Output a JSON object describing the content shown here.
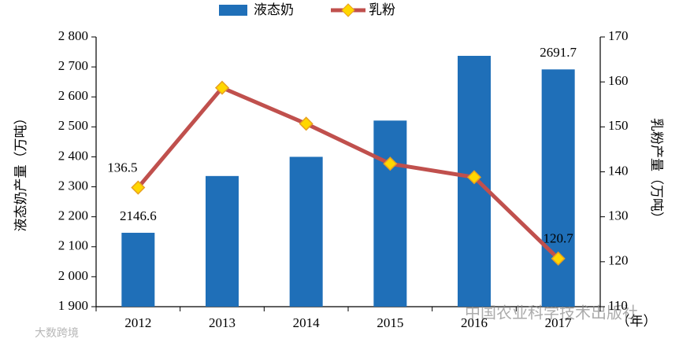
{
  "chart_data": {
    "type": "bar-line",
    "categories": [
      "2012",
      "2013",
      "2014",
      "2015",
      "2016",
      "2017"
    ],
    "x_unit": "（年）",
    "series": [
      {
        "name": "液态奶",
        "type": "bar",
        "color": "#1f6fb8",
        "values": [
          2146.6,
          2336,
          2400,
          2521,
          2737,
          2691.7
        ],
        "value_labels": [
          "2146.6",
          null,
          null,
          null,
          null,
          "2691.7"
        ]
      },
      {
        "name": "乳粉",
        "type": "line",
        "axis": "y2",
        "color": "#c0504d",
        "marker_color": "#ffd700",
        "values": [
          136.5,
          158.7,
          150.7,
          141.8,
          138.8,
          120.7
        ],
        "value_labels": [
          "136.5",
          null,
          null,
          null,
          null,
          "120.7"
        ]
      }
    ],
    "ylabel": "液态奶产量（万吨）",
    "y2label": "乳粉产量（万吨）",
    "ylim": [
      1900,
      2800
    ],
    "yticks": [
      {
        "value": 1900,
        "label": "1 900"
      },
      {
        "value": 2000,
        "label": "2 000"
      },
      {
        "value": 2100,
        "label": "2 100"
      },
      {
        "value": 2200,
        "label": "2 200"
      },
      {
        "value": 2300,
        "label": "2 300"
      },
      {
        "value": 2400,
        "label": "2 400"
      },
      {
        "value": 2500,
        "label": "2 500"
      },
      {
        "value": 2600,
        "label": "2 600"
      },
      {
        "value": 2700,
        "label": "2 700"
      },
      {
        "value": 2800,
        "label": "2 800"
      }
    ],
    "y2lim": [
      110,
      170
    ],
    "y2ticks": [
      110,
      120,
      130,
      140,
      150,
      160,
      170
    ],
    "legend": "top",
    "watermarks": [
      "中国农业科学技术出版社",
      "大数跨境"
    ]
  }
}
